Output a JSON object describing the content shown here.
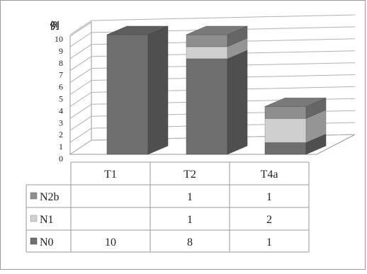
{
  "chart_data": {
    "type": "bar",
    "stacked": true,
    "three_d": true,
    "title": "",
    "ylabel": "例",
    "ylim": [
      0,
      10
    ],
    "yticks": [
      0,
      1,
      2,
      3,
      4,
      5,
      6,
      7,
      8,
      9,
      10
    ],
    "grid": true,
    "categories": [
      "T1",
      "T2",
      "T4a"
    ],
    "series": [
      {
        "name": "N0",
        "values": [
          10,
          8,
          1
        ],
        "color": "#6e6e6e"
      },
      {
        "name": "N1",
        "values": [
          null,
          1,
          2
        ],
        "color": "#cfcfcf"
      },
      {
        "name": "N2b",
        "values": [
          null,
          1,
          1
        ],
        "color": "#8e8e8e"
      }
    ],
    "table_rows_order": [
      "N2b",
      "N1",
      "N0"
    ],
    "legend_placement": "data-table"
  }
}
